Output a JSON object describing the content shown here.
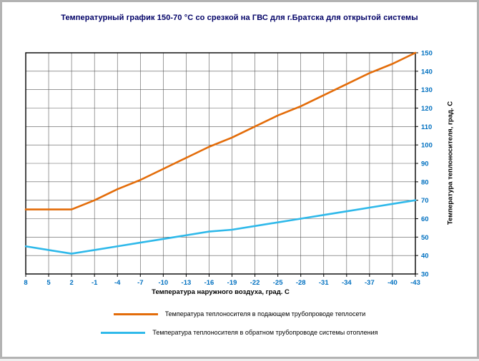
{
  "window": {
    "background": "#ffffff",
    "border_color": "#b3b3b3"
  },
  "chart_data": {
    "type": "line",
    "title": "Температурный график 150-70 °С со срезкой на ГВС для г.Братска для открытой системы",
    "xlabel": "Температура наружного воздуха, град. С",
    "ylabel": "Температура теплоносителя, град. С",
    "categories": [
      "8",
      "5",
      "2",
      "-1",
      "-4",
      "-7",
      "-10",
      "-13",
      "-16",
      "-19",
      "-22",
      "-25",
      "-28",
      "-31",
      "-34",
      "-37",
      "-40",
      "-43"
    ],
    "y_ticks": [
      30,
      40,
      50,
      60,
      70,
      80,
      90,
      100,
      110,
      120,
      130,
      140,
      150
    ],
    "ylim": [
      30,
      150
    ],
    "grid": true,
    "legend_position": "bottom",
    "tick_label_color": "#0070C0",
    "grid_color": "#595959",
    "series": [
      {
        "name": "Температура теплоносителя в подающем трубопроводе теплосети",
        "color": "#E36C09",
        "values": [
          65,
          65,
          65,
          70,
          76,
          81,
          87,
          93,
          99,
          104,
          110,
          116,
          121,
          127,
          133,
          139,
          144,
          150
        ]
      },
      {
        "name": "Температура теплоносителя в обратном трубопроводе системы отопления",
        "color": "#2FB9EA",
        "values": [
          45,
          43,
          41,
          43,
          45,
          47,
          49,
          51,
          53,
          54,
          56,
          58,
          60,
          62,
          64,
          66,
          68,
          70
        ]
      }
    ]
  }
}
